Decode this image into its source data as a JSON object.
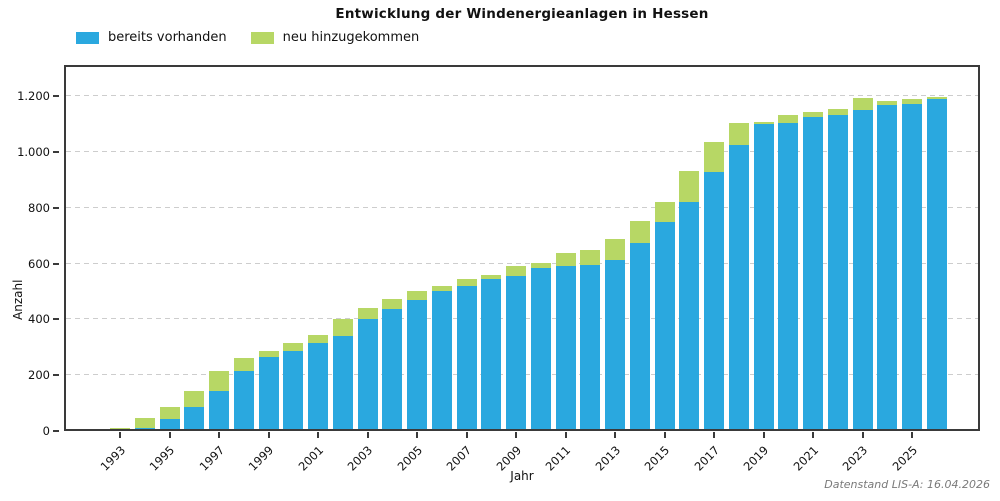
{
  "title": "Entwicklung der Windenergieanlagen in Hessen",
  "footnote": "Datenstand LIS-A: 16.04.2026",
  "chart_data": {
    "type": "bar",
    "stacked": true,
    "title": "Entwicklung der Windenergieanlagen in Hessen",
    "xlabel": "Jahr",
    "ylabel": "Anzahl",
    "ylim": [
      0,
      1260
    ],
    "grid": "horizontal-dashed",
    "legend_position": "top-left",
    "yticks": [
      0,
      200,
      400,
      600,
      800,
      1000,
      1200
    ],
    "ytick_labels": [
      "0",
      "200",
      "400",
      "600",
      "800",
      "1.000",
      "1.200"
    ],
    "categories": [
      1993,
      1994,
      1995,
      1996,
      1997,
      1998,
      1999,
      2000,
      2001,
      2002,
      2003,
      2004,
      2005,
      2006,
      2007,
      2008,
      2009,
      2010,
      2011,
      2012,
      2013,
      2014,
      2015,
      2016,
      2017,
      2018,
      2019,
      2020,
      2021,
      2022,
      2023,
      2024,
      2025,
      2026
    ],
    "xtick_labels": [
      "1993",
      "1995",
      "1997",
      "1999",
      "2001",
      "2003",
      "2005",
      "2007",
      "2009",
      "2011",
      "2013",
      "2015",
      "2017",
      "2019",
      "2021",
      "2023",
      "2025"
    ],
    "series": [
      {
        "name": "bereits vorhanden",
        "color": "#2AA8DF",
        "values": [
          1,
          8,
          40,
          84,
          140,
          210,
          260,
          283,
          312,
          338,
          398,
          433,
          466,
          497,
          515,
          542,
          552,
          580,
          589,
          591,
          610,
          669,
          744,
          816,
          925,
          1021,
          1096,
          1100,
          1120,
          1130,
          1146,
          1164,
          1168,
          1186
        ]
      },
      {
        "name": "neu hinzugekommen",
        "color": "#B7D765",
        "values": [
          7,
          36,
          44,
          57,
          73,
          48,
          22,
          30,
          30,
          60,
          38,
          36,
          33,
          18,
          27,
          12,
          34,
          18,
          44,
          55,
          74,
          81,
          72,
          111,
          105,
          78,
          8,
          29,
          19,
          20,
          43,
          14,
          18,
          7
        ]
      }
    ]
  }
}
